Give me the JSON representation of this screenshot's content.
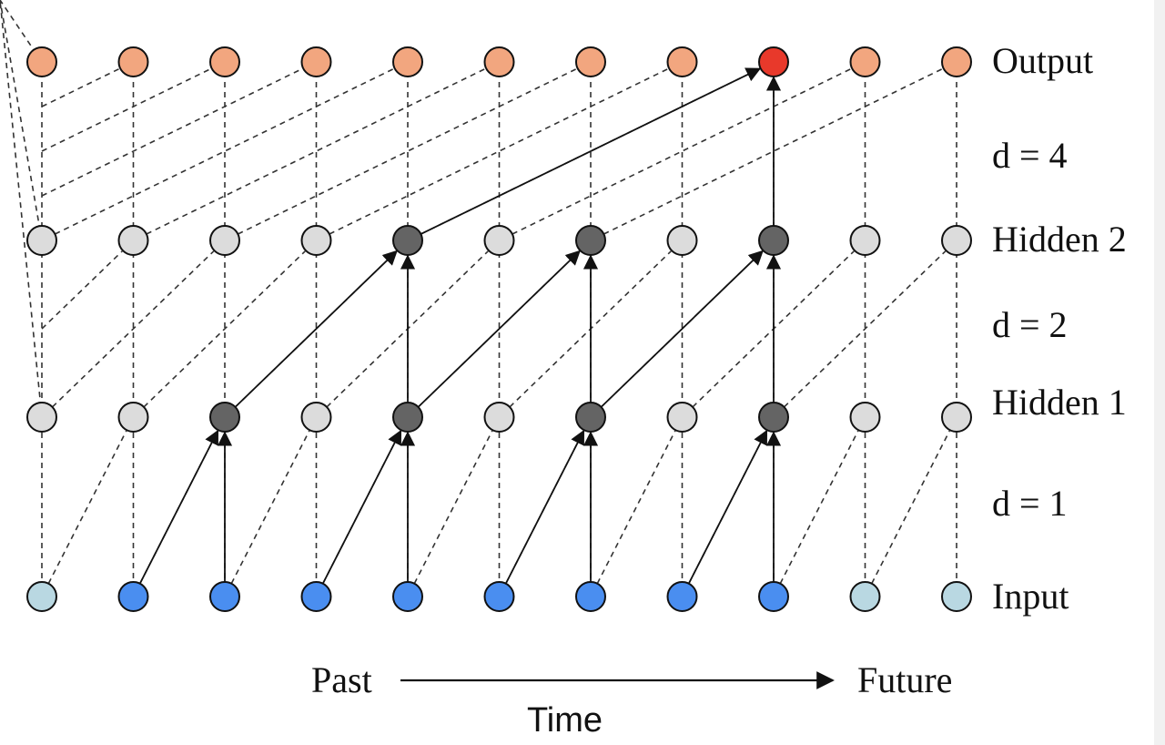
{
  "layers": [
    {
      "id": "input",
      "label": "Input"
    },
    {
      "id": "hidden1",
      "label": "Hidden 1"
    },
    {
      "id": "hidden2",
      "label": "Hidden 2"
    },
    {
      "id": "output",
      "label": "Output"
    }
  ],
  "dilations": [
    {
      "label": "d = 1"
    },
    {
      "label": "d = 2"
    },
    {
      "label": "d = 4"
    }
  ],
  "time_axis": {
    "past_label": "Past",
    "future_label": "Future",
    "axis_label": "Time"
  },
  "node_count": 11,
  "colors": {
    "input_active": "#4a8ef0",
    "input_inactive": "#b9d8e2",
    "hidden_active": "#646464",
    "hidden_inactive": "#dcdcdc",
    "output_active": "#e8392b",
    "output_inactive": "#f2a67f"
  },
  "active_nodes": {
    "input": [
      1,
      2,
      3,
      4,
      5,
      6,
      7,
      8
    ],
    "hidden1": [
      2,
      4,
      6,
      8
    ],
    "hidden2": [
      4,
      6,
      8
    ],
    "output": [
      8
    ]
  },
  "active_edges": [
    {
      "from_layer": "input",
      "from": 1,
      "to_layer": "hidden1",
      "to": 2
    },
    {
      "from_layer": "input",
      "from": 2,
      "to_layer": "hidden1",
      "to": 2
    },
    {
      "from_layer": "input",
      "from": 3,
      "to_layer": "hidden1",
      "to": 4
    },
    {
      "from_layer": "input",
      "from": 4,
      "to_layer": "hidden1",
      "to": 4
    },
    {
      "from_layer": "input",
      "from": 5,
      "to_layer": "hidden1",
      "to": 6
    },
    {
      "from_layer": "input",
      "from": 6,
      "to_layer": "hidden1",
      "to": 6
    },
    {
      "from_layer": "input",
      "from": 7,
      "to_layer": "hidden1",
      "to": 8
    },
    {
      "from_layer": "input",
      "from": 8,
      "to_layer": "hidden1",
      "to": 8
    },
    {
      "from_layer": "hidden1",
      "from": 2,
      "to_layer": "hidden2",
      "to": 4
    },
    {
      "from_layer": "hidden1",
      "from": 4,
      "to_layer": "hidden2",
      "to": 4
    },
    {
      "from_layer": "hidden1",
      "from": 4,
      "to_layer": "hidden2",
      "to": 6
    },
    {
      "from_layer": "hidden1",
      "from": 6,
      "to_layer": "hidden2",
      "to": 6
    },
    {
      "from_layer": "hidden1",
      "from": 6,
      "to_layer": "hidden2",
      "to": 8
    },
    {
      "from_layer": "hidden1",
      "from": 8,
      "to_layer": "hidden2",
      "to": 8
    },
    {
      "from_layer": "hidden2",
      "from": 4,
      "to_layer": "output",
      "to": 8
    },
    {
      "from_layer": "hidden2",
      "from": 8,
      "to_layer": "output",
      "to": 8
    }
  ]
}
